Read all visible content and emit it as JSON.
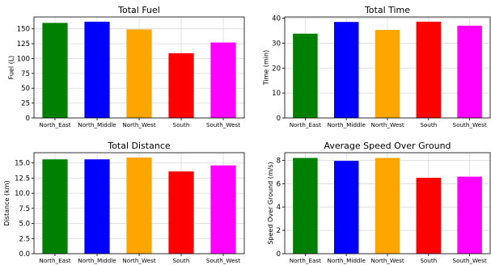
{
  "chart_data": [
    {
      "type": "bar",
      "title": "Total Fuel",
      "xlabel": "",
      "ylabel": "Fuel (L)",
      "categories": [
        "North_East",
        "North_Middle",
        "North_West",
        "South",
        "South_West"
      ],
      "values": [
        160,
        162,
        149,
        109,
        127
      ],
      "colors": [
        "#008000",
        "#0000ff",
        "#ffa500",
        "#ff0000",
        "#ff00ff"
      ],
      "ylim": [
        0,
        170
      ],
      "yticks": [
        0,
        25,
        50,
        75,
        100,
        125,
        150
      ],
      "grid": true
    },
    {
      "type": "bar",
      "title": "Total Time",
      "xlabel": "",
      "ylabel": "Time (min)",
      "categories": [
        "North_East",
        "North_Middle",
        "North_West",
        "South",
        "South_West"
      ],
      "values": [
        33.8,
        38.5,
        35.3,
        38.6,
        37.0
      ],
      "colors": [
        "#008000",
        "#0000ff",
        "#ffa500",
        "#ff0000",
        "#ff00ff"
      ],
      "ylim": [
        0,
        40.5
      ],
      "yticks": [
        0,
        10,
        20,
        30,
        40
      ],
      "grid": true
    },
    {
      "type": "bar",
      "title": "Total Distance",
      "xlabel": "",
      "ylabel": "Distance (km)",
      "categories": [
        "North_East",
        "North_Middle",
        "North_West",
        "South",
        "South_West"
      ],
      "values": [
        15.6,
        15.6,
        15.9,
        13.6,
        14.6
      ],
      "colors": [
        "#008000",
        "#0000ff",
        "#ffa500",
        "#ff0000",
        "#ff00ff"
      ],
      "ylim": [
        0,
        16.7
      ],
      "yticks": [
        0.0,
        2.5,
        5.0,
        7.5,
        10.0,
        12.5,
        15.0
      ],
      "tick_decimals": 1,
      "grid": true
    },
    {
      "type": "bar",
      "title": "Average Speed Over Ground",
      "xlabel": "",
      "ylabel": "Speed Over Ground (m/s)",
      "categories": [
        "North_East",
        "North_Middle",
        "North_West",
        "South",
        "South_West"
      ],
      "values": [
        8.2,
        7.95,
        8.2,
        6.5,
        6.6
      ],
      "colors": [
        "#008000",
        "#0000ff",
        "#ffa500",
        "#ff0000",
        "#ff00ff"
      ],
      "ylim": [
        0,
        8.65
      ],
      "yticks": [
        0,
        2,
        4,
        6,
        8
      ],
      "grid": true
    }
  ]
}
